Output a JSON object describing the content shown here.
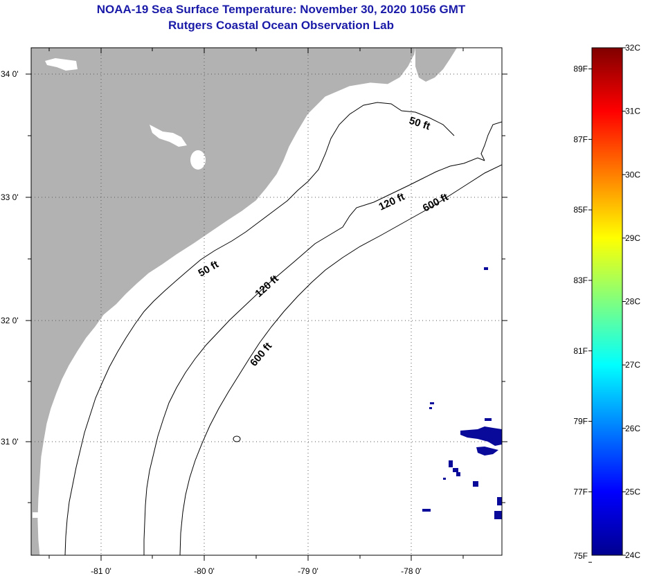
{
  "header": {
    "title": "NOAA-19 Sea Surface Temperature:  November 30, 2020 1056 GMT",
    "subtitle": "Rutgers Coastal Ocean Observation Lab"
  },
  "map": {
    "lon_labels": [
      "-81 0'",
      "-80 0'",
      "-79 0'",
      "-78 0'"
    ],
    "lat_labels": [
      "34 0'",
      "33 0'",
      "32 0'",
      "31 0'"
    ],
    "contours": [
      {
        "label": "50 ft"
      },
      {
        "label": "120 ft"
      },
      {
        "label": "600 ft"
      },
      {
        "label": "50 ft"
      },
      {
        "label": "120 ft"
      },
      {
        "label": "600 ft"
      }
    ],
    "colors": {
      "land": "#b2b2b2",
      "water": "#ffffff",
      "sst_cold_patch": "#0a0a9a"
    }
  },
  "colorbar": {
    "fahrenheit_labels": [
      "89F",
      "87F",
      "85F",
      "83F",
      "81F",
      "79F",
      "77F",
      "75F"
    ],
    "celsius_labels": [
      "32C",
      "31C",
      "30C",
      "29C",
      "28C",
      "27C",
      "26C",
      "25C",
      "24C"
    ],
    "scale": "jet",
    "range_c": [
      24,
      32
    ],
    "range_f": [
      75,
      89
    ]
  }
}
